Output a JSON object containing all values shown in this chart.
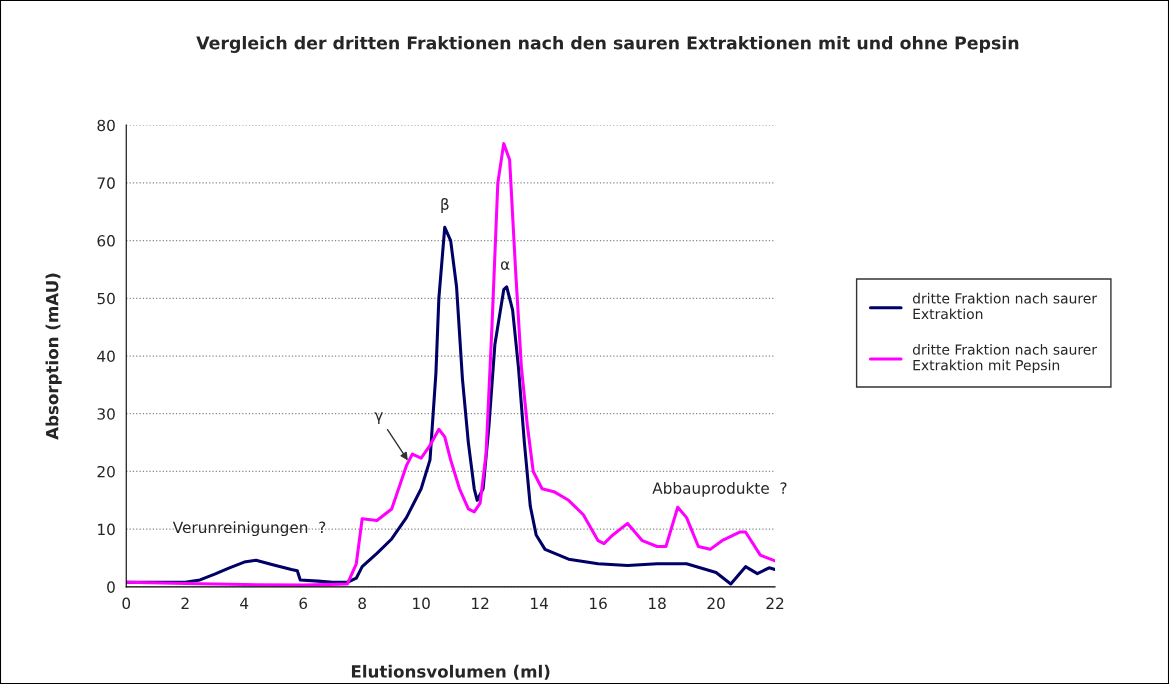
{
  "chart_data": {
    "type": "line",
    "title": "Vergleich der dritten Fraktionen nach den sauren Extraktionen mit und ohne Pepsin",
    "xlabel": "Elutionsvolumen (ml)",
    "ylabel": "Absorption (mAU)",
    "xlim": [
      0,
      22
    ],
    "xticks": [
      0,
      2,
      4,
      6,
      8,
      10,
      12,
      14,
      16,
      18,
      20,
      22
    ],
    "ylim": [
      0,
      80
    ],
    "yticks": [
      0,
      10,
      20,
      30,
      40,
      50,
      60,
      70,
      80
    ],
    "grid": "y",
    "legend": "right",
    "marker": "none",
    "line_style": "solid",
    "series": [
      {
        "name": "dritte Fraktion nach saurer Extraktion",
        "color": "#000066",
        "x": [
          0,
          1,
          2,
          2.5,
          3,
          3.5,
          4,
          4.4,
          5,
          5.6,
          5.8,
          5.9,
          6.5,
          7,
          7.5,
          7.8,
          8,
          8.5,
          9,
          9.5,
          10,
          10.3,
          10.5,
          10.6,
          10.8,
          11.0,
          11.2,
          11.4,
          11.6,
          11.8,
          11.9,
          12.1,
          12.3,
          12.5,
          12.8,
          12.9,
          13.1,
          13.3,
          13.5,
          13.7,
          13.9,
          14.2,
          15,
          16,
          17,
          18,
          19,
          20,
          20.5,
          21,
          21.4,
          21.8,
          22
        ],
        "values": [
          0.8,
          0.8,
          0.8,
          1.2,
          2.2,
          3.3,
          4.3,
          4.6,
          3.8,
          3.0,
          2.8,
          1.2,
          1.0,
          0.8,
          0.8,
          1.5,
          3.5,
          5.8,
          8.3,
          12,
          17,
          22,
          37,
          50,
          62.3,
          60,
          52,
          36,
          25,
          17,
          15,
          17,
          28,
          42,
          51.5,
          52,
          48,
          38,
          25,
          14,
          9,
          6.5,
          4.8,
          4,
          3.7,
          4,
          4,
          2.5,
          0.5,
          3.5,
          2.3,
          3.3,
          3.0
        ]
      },
      {
        "name": "dritte Fraktion nach saurer Extraktion mit Pepsin",
        "color": "#ff00ff",
        "x": [
          0,
          2,
          4,
          6,
          7.5,
          7.8,
          8,
          8.5,
          9,
          9.5,
          9.7,
          10,
          10.3,
          10.6,
          10.8,
          11.0,
          11.3,
          11.6,
          11.8,
          12.0,
          12.2,
          12.4,
          12.6,
          12.8,
          13.0,
          13.2,
          13.4,
          13.6,
          13.8,
          14.1,
          14.5,
          15,
          15.5,
          16,
          16.2,
          16.5,
          17,
          17.5,
          18,
          18.3,
          18.7,
          19,
          19.4,
          19.8,
          20.2,
          20.8,
          21,
          21.5,
          22
        ],
        "values": [
          0.8,
          0.6,
          0.4,
          0.3,
          0.5,
          4,
          11.8,
          11.5,
          13.5,
          21,
          23,
          22.3,
          24.5,
          27.3,
          26,
          22,
          17,
          13.5,
          13,
          14.5,
          23,
          45,
          70,
          76.8,
          74,
          55,
          38,
          28,
          20,
          17,
          16.5,
          15,
          12.5,
          8,
          7.5,
          9,
          11,
          8,
          7,
          7,
          13.8,
          12,
          7,
          6.5,
          8,
          9.5,
          9.5,
          5.5,
          4.5
        ]
      }
    ],
    "annotations": [
      "β",
      "α",
      {
        "text": "γ",
        "x": 9.6,
        "y": 21.5
      },
      "Verunreinigungen  ?",
      "Abbauprodukte  ?"
    ]
  }
}
